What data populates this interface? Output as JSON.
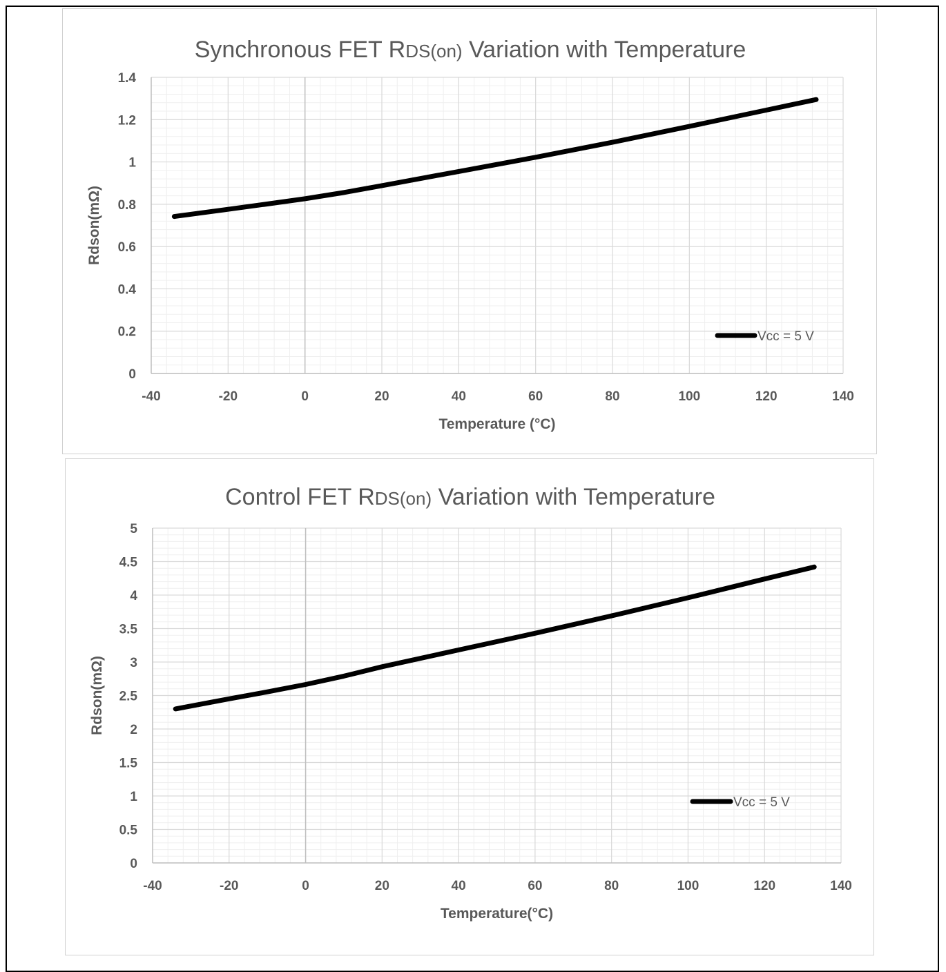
{
  "chart_data": [
    {
      "id": "sync",
      "type": "line",
      "title_main_before": "Synchronous FET R",
      "title_small": "DS(on)",
      "title_main_after": " Variation with Temperature",
      "xlabel": "Temperature (°C)",
      "ylabel": "Rdson(mΩ)",
      "xlim": [
        -40,
        140
      ],
      "ylim": [
        0,
        1.4
      ],
      "xticks": [
        -40,
        -20,
        0,
        20,
        40,
        60,
        80,
        100,
        120,
        140
      ],
      "xtick_labels": [
        "-40",
        "-20",
        "0",
        "20",
        "40",
        "60",
        "80",
        "100",
        "120",
        "140"
      ],
      "yticks": [
        0,
        0.2,
        0.4,
        0.6,
        0.8,
        1,
        1.2,
        1.4
      ],
      "ytick_labels": [
        "0",
        "0.2",
        "0.4",
        "0.6",
        "0.8",
        "1",
        "1.2",
        "1.4"
      ],
      "grid": true,
      "legend_position": "bottom-right",
      "series": [
        {
          "name": "Vcc = 5 V",
          "color": "#000000",
          "x": [
            -34,
            -20,
            -10,
            0,
            10,
            20,
            40,
            60,
            80,
            100,
            120,
            133
          ],
          "y": [
            0.742,
            0.776,
            0.801,
            0.826,
            0.855,
            0.888,
            0.955,
            1.022,
            1.093,
            1.168,
            1.245,
            1.295
          ]
        }
      ]
    },
    {
      "id": "ctrl",
      "type": "line",
      "title_main_before": "Control FET R",
      "title_small": "DS(on)",
      "title_main_after": " Variation with Temperature",
      "xlabel": "Temperature(°C)",
      "ylabel": "Rdson(mΩ)",
      "xlim": [
        -40,
        140
      ],
      "ylim": [
        0,
        5
      ],
      "xticks": [
        -40,
        -20,
        0,
        20,
        40,
        60,
        80,
        100,
        120,
        140
      ],
      "xtick_labels": [
        "-40",
        "-20",
        "0",
        "20",
        "40",
        "60",
        "80",
        "100",
        "120",
        "140"
      ],
      "yticks": [
        0,
        0.5,
        1,
        1.5,
        2,
        2.5,
        3,
        3.5,
        4,
        4.5,
        5
      ],
      "ytick_labels": [
        "0",
        "0.5",
        "1",
        "1.5",
        "2",
        "2.5",
        "3",
        "3.5",
        "4",
        "4.5",
        "5"
      ],
      "grid": true,
      "legend_position": "bottom-right",
      "series": [
        {
          "name": "Vcc = 5 V",
          "color": "#000000",
          "x": [
            -34,
            -20,
            -10,
            0,
            10,
            20,
            40,
            60,
            80,
            100,
            120,
            133
          ],
          "y": [
            2.3,
            2.45,
            2.555,
            2.665,
            2.79,
            2.93,
            3.18,
            3.43,
            3.69,
            3.96,
            4.24,
            4.42
          ]
        }
      ]
    }
  ],
  "colors": {
    "grid_major": "#d9d9d9",
    "grid_minor": "#efefef",
    "axis": "#bfbfbf",
    "text": "#595959",
    "line": "#000000"
  }
}
